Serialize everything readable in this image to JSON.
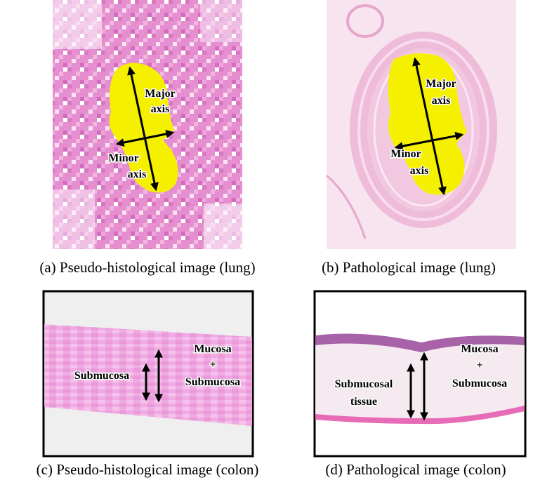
{
  "panels": [
    {
      "caption": "(a) Pseudo-histological image (lung)",
      "labels": [
        [
          "Major",
          "axis"
        ],
        [
          "Minor",
          "axis"
        ]
      ]
    },
    {
      "caption": "(b) Pathological image  (lung)",
      "labels": [
        [
          "Major",
          "axis"
        ],
        [
          "Minor",
          "axis"
        ]
      ]
    },
    {
      "caption": "(c) Pseudo-histological image (colon)",
      "labels": [
        [
          "Submucosa"
        ],
        [
          "Mucosa",
          "+",
          "Submucosa"
        ]
      ]
    },
    {
      "caption": "(d) Pathological image (colon)",
      "labels": [
        [
          "Submucosal",
          "tissue"
        ],
        [
          "Mucosa",
          "+",
          "Submucosa"
        ]
      ]
    }
  ]
}
